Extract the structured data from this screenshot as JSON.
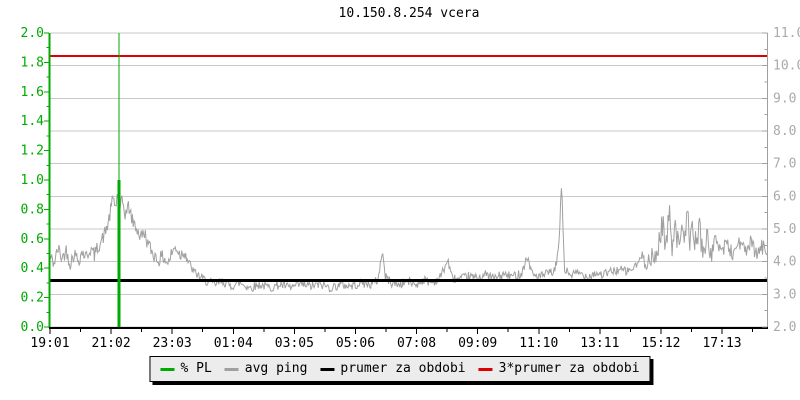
{
  "title": "10.150.8.254 vcera",
  "colors": {
    "pl_green": "#00AA00",
    "ping_gray": "#A0A0A0",
    "grid_gray": "#C9C9C9",
    "right_label_gray": "#AAAAAA",
    "average_black": "#000000",
    "triple_average_red": "#DD0000",
    "background": "#FFFFFF",
    "legend_background": "#ECECEC"
  },
  "legend": {
    "items": [
      {
        "label": "% PL",
        "color": "#00AA00"
      },
      {
        "label": "avg ping",
        "color": "#A0A0A0"
      },
      {
        "label": "prumer za obdobi",
        "color": "#000000"
      },
      {
        "label": "3*prumer za obdobi",
        "color": "#DD0000"
      }
    ]
  },
  "chart_data": {
    "type": "line",
    "title": "10.150.8.254 vcera",
    "grid": {
      "horizontal": true,
      "vertical": false,
      "horizontal_step_right_axis": 1.0
    },
    "x_axis": {
      "tick_labels": [
        "19:01",
        "21:02",
        "23:03",
        "01:04",
        "03:05",
        "05:06",
        "07:08",
        "09:09",
        "11:10",
        "13:11",
        "15:12",
        "17:13"
      ],
      "tick_spacing_minutes": 121,
      "minor_tick_minutes": 60.5,
      "total_minutes": 1422
    },
    "y_left_axis": {
      "series": "% PL",
      "color": "#00AA00",
      "min": 0.0,
      "max": 2.0,
      "tick_labels": [
        "2.0",
        "1.8",
        "1.6",
        "1.4",
        "1.2",
        "1.0",
        "0.8",
        "0.6",
        "0.4",
        "0.2",
        "0.0"
      ],
      "tick_step": 0.2,
      "minor_step": 0.1
    },
    "y_right_axis": {
      "series": "avg ping (ms)",
      "color": "#AAAAAA",
      "min": 2.0,
      "max": 11.0,
      "tick_labels": [
        "11.0",
        "10.0",
        "9.0",
        "8.0",
        "7.0",
        "6.0",
        "5.0",
        "4.0",
        "3.0",
        "2.0"
      ],
      "tick_step": 1.0,
      "minor_step": 0.5
    },
    "series": [
      {
        "name": "% PL",
        "axis": "left",
        "color": "#00AA00",
        "baseline_percent": 0,
        "events": [
          {
            "minute": 137,
            "approx_time": "21:18",
            "max_percent": 2.0,
            "avg_percent": 1.0
          }
        ]
      },
      {
        "name": "avg ping",
        "axis": "right",
        "color": "#A0A0A0",
        "unit": "ms",
        "points": [
          [
            0,
            4.15
          ],
          [
            8,
            3.95
          ],
          [
            16,
            4.4
          ],
          [
            24,
            4.1
          ],
          [
            32,
            4.35
          ],
          [
            40,
            3.95
          ],
          [
            48,
            4.25
          ],
          [
            56,
            4.05
          ],
          [
            64,
            4.3
          ],
          [
            72,
            4.15
          ],
          [
            80,
            4.4
          ],
          [
            88,
            4.2
          ],
          [
            96,
            4.5
          ],
          [
            104,
            4.7
          ],
          [
            112,
            5.0
          ],
          [
            119,
            5.45
          ],
          [
            125,
            6.0
          ],
          [
            130,
            5.65
          ],
          [
            134,
            6.1
          ],
          [
            138,
            5.5
          ],
          [
            143,
            5.9
          ],
          [
            149,
            5.45
          ],
          [
            156,
            5.7
          ],
          [
            163,
            5.25
          ],
          [
            171,
            5.05
          ],
          [
            179,
            4.75
          ],
          [
            187,
            4.9
          ],
          [
            195,
            4.5
          ],
          [
            204,
            4.25
          ],
          [
            214,
            4.05
          ],
          [
            224,
            4.15
          ],
          [
            234,
            3.95
          ],
          [
            242,
            4.3
          ],
          [
            250,
            4.45
          ],
          [
            258,
            4.2
          ],
          [
            266,
            4.35
          ],
          [
            274,
            4.0
          ],
          [
            284,
            3.7
          ],
          [
            296,
            3.55
          ],
          [
            310,
            3.4
          ],
          [
            326,
            3.3
          ],
          [
            342,
            3.4
          ],
          [
            358,
            3.25
          ],
          [
            376,
            3.35
          ],
          [
            396,
            3.2
          ],
          [
            416,
            3.3
          ],
          [
            436,
            3.2
          ],
          [
            456,
            3.3
          ],
          [
            476,
            3.2
          ],
          [
            496,
            3.3
          ],
          [
            516,
            3.25
          ],
          [
            536,
            3.3
          ],
          [
            556,
            3.2
          ],
          [
            576,
            3.3
          ],
          [
            596,
            3.25
          ],
          [
            616,
            3.35
          ],
          [
            636,
            3.3
          ],
          [
            650,
            3.45
          ],
          [
            658,
            4.35
          ],
          [
            664,
            3.55
          ],
          [
            676,
            3.35
          ],
          [
            692,
            3.3
          ],
          [
            708,
            3.4
          ],
          [
            724,
            3.3
          ],
          [
            740,
            3.45
          ],
          [
            756,
            3.35
          ],
          [
            772,
            3.5
          ],
          [
            788,
            4.05
          ],
          [
            796,
            3.5
          ],
          [
            812,
            3.45
          ],
          [
            828,
            3.55
          ],
          [
            844,
            3.5
          ],
          [
            862,
            3.6
          ],
          [
            880,
            3.5
          ],
          [
            898,
            3.6
          ],
          [
            916,
            3.55
          ],
          [
            934,
            3.65
          ],
          [
            945,
            4.15
          ],
          [
            956,
            3.6
          ],
          [
            972,
            3.55
          ],
          [
            988,
            3.65
          ],
          [
            1000,
            3.7
          ],
          [
            1008,
            4.5
          ],
          [
            1013,
            6.4
          ],
          [
            1019,
            3.75
          ],
          [
            1032,
            3.6
          ],
          [
            1048,
            3.65
          ],
          [
            1064,
            3.55
          ],
          [
            1080,
            3.65
          ],
          [
            1096,
            3.6
          ],
          [
            1112,
            3.7
          ],
          [
            1128,
            3.75
          ],
          [
            1144,
            3.7
          ],
          [
            1160,
            3.85
          ],
          [
            1176,
            4.25
          ],
          [
            1188,
            3.95
          ],
          [
            1200,
            4.15
          ],
          [
            1208,
            4.75
          ],
          [
            1214,
            5.25
          ],
          [
            1220,
            4.35
          ],
          [
            1226,
            5.55
          ],
          [
            1232,
            4.55
          ],
          [
            1238,
            5.35
          ],
          [
            1244,
            4.45
          ],
          [
            1250,
            5.15
          ],
          [
            1256,
            4.3
          ],
          [
            1262,
            5.6
          ],
          [
            1268,
            4.6
          ],
          [
            1274,
            5.05
          ],
          [
            1280,
            4.4
          ],
          [
            1286,
            5.25
          ],
          [
            1292,
            4.3
          ],
          [
            1300,
            4.7
          ],
          [
            1310,
            4.2
          ],
          [
            1320,
            4.75
          ],
          [
            1330,
            4.3
          ],
          [
            1340,
            4.6
          ],
          [
            1352,
            4.2
          ],
          [
            1364,
            4.65
          ],
          [
            1376,
            4.3
          ],
          [
            1388,
            4.55
          ],
          [
            1400,
            4.2
          ],
          [
            1410,
            4.45
          ],
          [
            1422,
            4.3
          ]
        ],
        "noise_band_ms": [
          {
            "from": 0,
            "to": 275,
            "amp": 0.22
          },
          {
            "from": 275,
            "to": 1175,
            "amp": 0.14
          },
          {
            "from": 1175,
            "to": 1305,
            "amp": 0.4
          },
          {
            "from": 1305,
            "to": 1422,
            "amp": 0.25
          }
        ]
      },
      {
        "name": "prumer za obdobi",
        "axis": "right",
        "color": "#000000",
        "value_ms": 3.43
      },
      {
        "name": "3*prumer za obdobi",
        "axis": "right",
        "color": "#DD0000",
        "value_ms": 10.29
      }
    ]
  }
}
